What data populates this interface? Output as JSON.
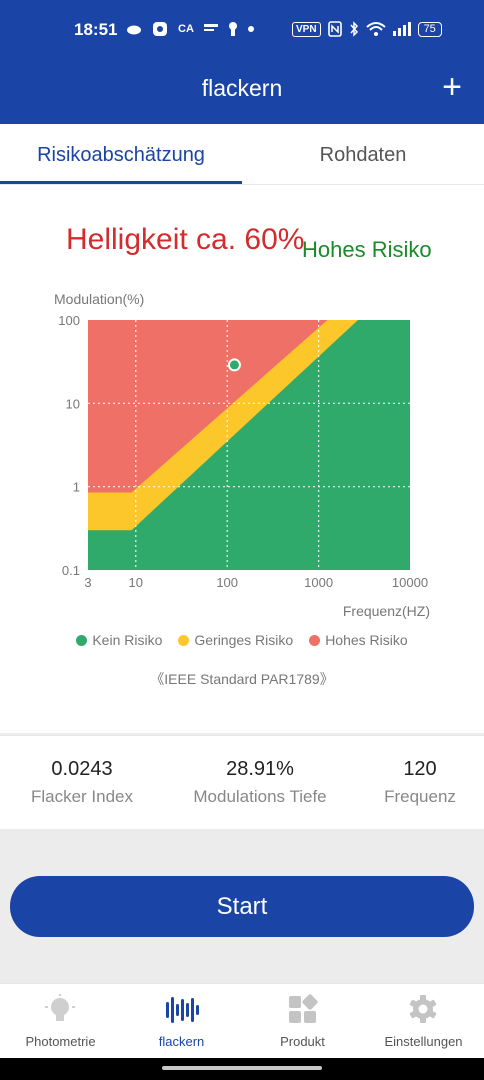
{
  "status_bar": {
    "time": "18:51",
    "left_icons": [
      "cloud-icon",
      "messenger-icon",
      "ca-icon",
      "news-icon",
      "keyhole-icon",
      "dot-icon"
    ],
    "ca_text": "CA",
    "vpn": "VPN",
    "battery": "75"
  },
  "app_bar": {
    "title": "flackern",
    "add_label": "+"
  },
  "tabs": [
    {
      "label": "Risikoabschätzung",
      "active": true
    },
    {
      "label": "Rohdaten",
      "active": false
    }
  ],
  "assessment": {
    "brightness": "Helligkeit ca. 60%",
    "risk_level": "Hohes Risiko"
  },
  "chart_data": {
    "type": "area",
    "ylabel": "Modulation(%)",
    "xlabel": "Frequenz(HZ)",
    "x_scale": "log",
    "y_scale": "log",
    "xlim": [
      3,
      10000
    ],
    "ylim": [
      0.1,
      100
    ],
    "x_ticks": [
      "3",
      "10",
      "100",
      "1000",
      "10000"
    ],
    "y_ticks": [
      "100",
      "10",
      "1",
      "0.1"
    ],
    "grid": true,
    "regions": [
      {
        "name": "Kein Risiko",
        "color": "#2faa6b",
        "boundary": [
          [
            3,
            0.3
          ],
          [
            9,
            0.3
          ],
          [
            2700,
            100
          ]
        ]
      },
      {
        "name": "Geringes Risiko",
        "color": "#fcc72a",
        "boundary": [
          [
            3,
            0.85
          ],
          [
            9,
            0.85
          ],
          [
            1250,
            100
          ]
        ]
      },
      {
        "name": "Hohes Risiko",
        "color": "#ee7067"
      }
    ],
    "measurement": {
      "x": 120,
      "y": 28.91,
      "color": "#2faa6b"
    },
    "legend_position": "bottom",
    "legend": [
      {
        "label": "Kein Risiko",
        "color": "#2faa6b"
      },
      {
        "label": "Geringes Risiko",
        "color": "#fcc72a"
      },
      {
        "label": "Hohes Risiko",
        "color": "#ee7067"
      }
    ]
  },
  "standard": "《IEEE Standard PAR1789》",
  "stats": [
    {
      "value": "0.0243",
      "label": "Flacker Index"
    },
    {
      "value": "28.91%",
      "label": "Modulations Tiefe"
    },
    {
      "value": "120",
      "label": "Frequenz"
    }
  ],
  "start_label": "Start",
  "nav": [
    {
      "label": "Photometrie",
      "icon": "bulb-icon",
      "active": false
    },
    {
      "label": "flackern",
      "icon": "waveform-icon",
      "active": true
    },
    {
      "label": "Produkt",
      "icon": "grid-icon",
      "active": false
    },
    {
      "label": "Einstellungen",
      "icon": "gear-icon",
      "active": false
    }
  ],
  "colors": {
    "primary": "#1a44a6",
    "danger_text": "#d42c2c",
    "risk_text": "#1a8a2a"
  }
}
